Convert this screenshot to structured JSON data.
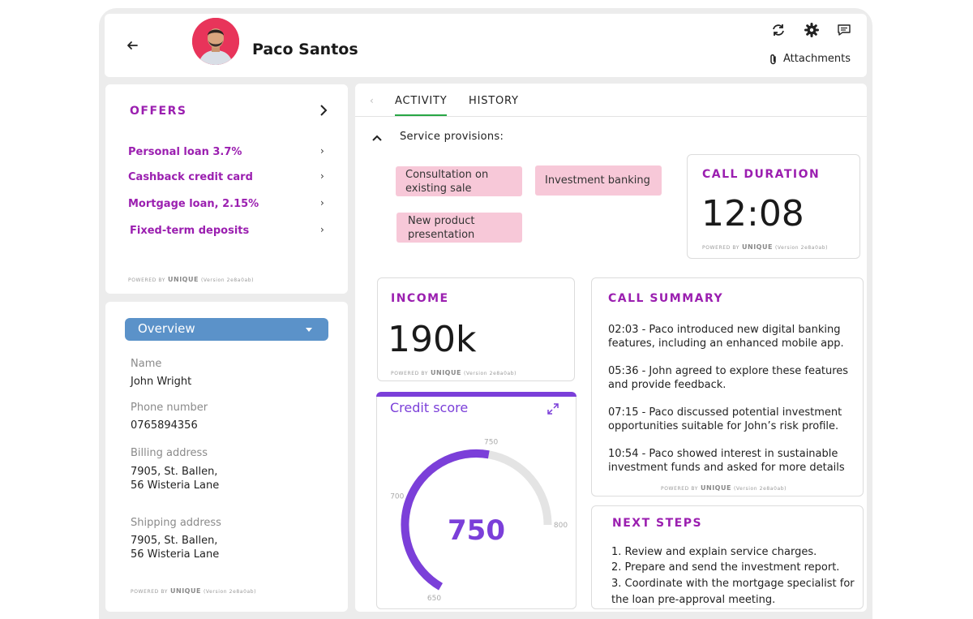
{
  "header": {
    "user_name": "Paco Santos",
    "attachments_label": "Attachments",
    "icons": [
      "back-arrow-icon",
      "refresh-icon",
      "gear-icon",
      "chat-icon",
      "paperclip-icon"
    ]
  },
  "offers": {
    "title": "OFFERS",
    "items": [
      {
        "label": "Personal loan 3.7%"
      },
      {
        "label": "Cashback credit card"
      },
      {
        "label": "Mortgage loan, 2.15%"
      },
      {
        "label": "Fixed-term deposits"
      }
    ]
  },
  "powered": {
    "prefix": "POWERED BY",
    "brand": "UNIQUE",
    "version": "(Version 2e8a0ab)"
  },
  "overview": {
    "selected": "Overview",
    "fields": [
      {
        "label": "Name",
        "value": "John Wright"
      },
      {
        "label": "Phone number",
        "value": "0765894356"
      },
      {
        "label": "Billing address",
        "line1": "7905, St. Ballen,",
        "line2": "56 Wisteria Lane"
      },
      {
        "label": "Shipping address",
        "line1": "7905, St. Ballen,",
        "line2": "56 Wisteria Lane"
      }
    ]
  },
  "tabs": [
    {
      "label": "ACTIVITY",
      "active": true
    },
    {
      "label": "HISTORY",
      "active": false
    }
  ],
  "service": {
    "label": "Service provisions:",
    "tags": [
      {
        "line1": "Consultation on",
        "line2": "existing sale"
      },
      {
        "line1": "Investment banking",
        "line2": ""
      },
      {
        "line1": "New product",
        "line2": "presentation"
      }
    ]
  },
  "call_duration": {
    "title": "CALL DURATION",
    "value": "12:08"
  },
  "income": {
    "title": "INCOME",
    "value": "190k"
  },
  "credit": {
    "title": "Credit score",
    "value": "750",
    "score": 750,
    "min": 650,
    "max": 800,
    "ticks": [
      "650",
      "700",
      "750",
      "800"
    ],
    "colors": {
      "fill": "#7b3fd9",
      "track": "#e4e4e4",
      "value": "#7b3fd9"
    }
  },
  "call_summary": {
    "title": "CALL SUMMARY",
    "items": [
      {
        "l1": "02:03 - Paco introduced new digital banking",
        "l2": "features, including an enhanced mobile app."
      },
      {
        "l1": "05:36 - John agreed to explore these features",
        "l2": "and provide feedback."
      },
      {
        "l1": "07:15 - Paco discussed potential investment",
        "l2": "opportunities suitable for John’s risk profile."
      },
      {
        "l1": "10:54 - Paco showed interest in sustainable",
        "l2": "investment funds and asked for more details"
      }
    ]
  },
  "next_steps": {
    "title": "NEXT STEPS",
    "lines": [
      "1. Review and explain service charges.",
      "2. Prepare and send the investment report.",
      "3. Coordinate with the mortgage specialist for",
      "the loan pre-approval meeting."
    ]
  },
  "colors": {
    "accent": "#9b1fb0",
    "select": "#5b92c9",
    "tab_active": "#28a745",
    "tag": "#f7c8d8"
  }
}
